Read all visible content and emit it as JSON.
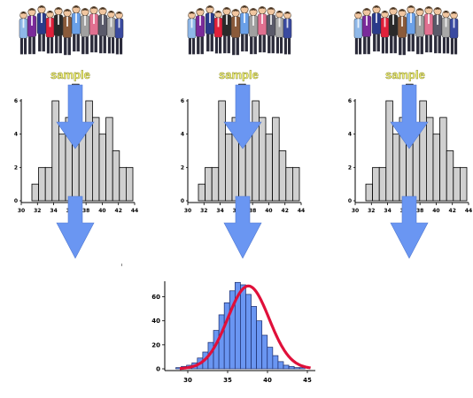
{
  "samples": [
    {
      "label": "sample"
    },
    {
      "label": "sample"
    },
    {
      "label": "sample"
    }
  ],
  "colors": {
    "arrow": "#6a96f2",
    "bar_fill": "#d0d0d0",
    "bar_stroke": "#000000",
    "big_bar_fill": "#6a96f2",
    "curve": "#e0103a"
  },
  "icons": [
    "crowd-of-people-icon",
    "down-arrow-icon"
  ],
  "chart_data": [
    {
      "type": "bar",
      "title": "",
      "xlabel": "",
      "ylabel": "",
      "x_ticks": [
        "30",
        "32",
        "34",
        "36",
        "38",
        "40",
        "42",
        "44"
      ],
      "y_ticks": [
        "0",
        "2",
        "4",
        "6"
      ],
      "ylim": [
        0,
        6
      ],
      "values": [
        1,
        2,
        2,
        6,
        4,
        5,
        7,
        4,
        6,
        5,
        4,
        5,
        3,
        2,
        2
      ],
      "grid": false
    },
    {
      "type": "bar",
      "title": "",
      "xlabel": "",
      "ylabel": "",
      "x_ticks": [
        "30",
        "32",
        "34",
        "36",
        "38",
        "40",
        "42",
        "44"
      ],
      "y_ticks": [
        "0",
        "2",
        "4",
        "6"
      ],
      "ylim": [
        0,
        6
      ],
      "values": [
        1,
        2,
        2,
        6,
        4,
        5,
        7,
        4,
        6,
        5,
        4,
        5,
        3,
        2,
        2
      ],
      "grid": false
    },
    {
      "type": "bar",
      "title": "",
      "xlabel": "",
      "ylabel": "",
      "x_ticks": [
        "30",
        "32",
        "34",
        "36",
        "38",
        "40",
        "42",
        "44"
      ],
      "y_ticks": [
        "0",
        "2",
        "4",
        "6"
      ],
      "ylim": [
        0,
        6
      ],
      "values": [
        1,
        2,
        2,
        6,
        4,
        5,
        7,
        4,
        6,
        5,
        4,
        5,
        3,
        2,
        2
      ],
      "grid": false
    },
    {
      "type": "bar",
      "title": "",
      "xlabel": "",
      "ylabel": "",
      "x_ticks": [
        "30",
        "35",
        "40",
        "45"
      ],
      "y_ticks": [
        "0",
        "20",
        "40",
        "60"
      ],
      "xlim": [
        28,
        46
      ],
      "ylim": [
        0,
        70
      ],
      "values": [
        1,
        2,
        3,
        5,
        9,
        14,
        22,
        32,
        45,
        55,
        65,
        72,
        70,
        62,
        52,
        40,
        28,
        18,
        11,
        6,
        3,
        2,
        1,
        1
      ],
      "curve": "normal fit",
      "grid": false
    }
  ]
}
